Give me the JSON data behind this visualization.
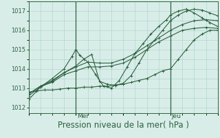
{
  "background_color": "#d8ede8",
  "plot_bg_color": "#d8ede8",
  "grid_color": "#a8cfc8",
  "line_color": "#2d6040",
  "xlabel": "Pression niveau de la mer( hPa )",
  "xlabel_fontsize": 8.5,
  "yticks": [
    1012,
    1013,
    1014,
    1015,
    1016,
    1017
  ],
  "ylim": [
    1011.7,
    1017.5
  ],
  "xlim": [
    0,
    48
  ],
  "vline_positions": [
    12,
    36
  ],
  "vline_labels": [
    "Mer",
    "Jeu"
  ],
  "series": [
    {
      "x": [
        0,
        2,
        4,
        6,
        8,
        10,
        12,
        14,
        16,
        18,
        20,
        22,
        24,
        26,
        28,
        30,
        32,
        34,
        36,
        38,
        40,
        42,
        44,
        46,
        48
      ],
      "y": [
        1012.8,
        1012.85,
        1012.9,
        1012.9,
        1012.95,
        1013.0,
        1013.0,
        1013.05,
        1013.05,
        1013.1,
        1013.1,
        1013.15,
        1013.2,
        1013.3,
        1013.4,
        1013.5,
        1013.7,
        1013.9,
        1014.0,
        1014.5,
        1015.0,
        1015.5,
        1015.8,
        1016.0,
        1016.0
      ]
    },
    {
      "x": [
        0,
        3,
        6,
        9,
        12,
        15,
        18,
        21,
        24,
        27,
        30,
        33,
        36,
        39,
        42,
        45,
        48
      ],
      "y": [
        1012.7,
        1013.1,
        1013.3,
        1013.7,
        1013.9,
        1014.1,
        1014.1,
        1014.15,
        1014.3,
        1014.6,
        1015.0,
        1015.4,
        1015.7,
        1016.0,
        1016.1,
        1016.15,
        1016.1
      ]
    },
    {
      "x": [
        0,
        3,
        6,
        9,
        12,
        15,
        18,
        21,
        24,
        27,
        30,
        33,
        36,
        39,
        42,
        45,
        48
      ],
      "y": [
        1012.7,
        1013.1,
        1013.4,
        1013.8,
        1014.1,
        1014.35,
        1014.3,
        1014.3,
        1014.5,
        1014.8,
        1015.2,
        1015.6,
        1016.0,
        1016.3,
        1016.5,
        1016.55,
        1016.5
      ]
    },
    {
      "x": [
        0,
        3,
        6,
        9,
        12,
        14,
        16,
        18,
        20,
        22,
        24,
        26,
        28,
        30,
        32,
        34,
        36,
        38,
        40,
        42,
        44,
        46,
        48
      ],
      "y": [
        1012.6,
        1013.05,
        1013.35,
        1013.8,
        1014.15,
        1014.5,
        1014.75,
        1013.35,
        1013.2,
        1013.15,
        1013.25,
        1013.65,
        1014.3,
        1015.0,
        1015.5,
        1016.0,
        1016.5,
        1016.8,
        1017.0,
        1017.1,
        1017.05,
        1016.9,
        1016.75
      ]
    },
    {
      "x": [
        0,
        3,
        6,
        9,
        11,
        12,
        13,
        15,
        17,
        19,
        21,
        23,
        25,
        27,
        29,
        31,
        33,
        35,
        36,
        38,
        40,
        42,
        44,
        46,
        48
      ],
      "y": [
        1012.4,
        1013.05,
        1013.5,
        1014.0,
        1014.65,
        1015.0,
        1014.7,
        1014.35,
        1013.7,
        1013.1,
        1013.0,
        1013.4,
        1014.1,
        1014.8,
        1015.3,
        1015.8,
        1016.2,
        1016.55,
        1016.8,
        1017.0,
        1017.1,
        1016.9,
        1016.65,
        1016.4,
        1016.2
      ]
    }
  ]
}
